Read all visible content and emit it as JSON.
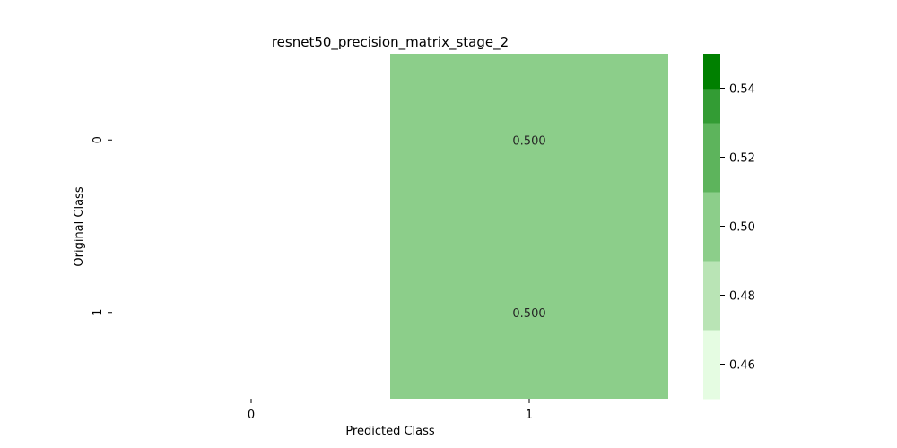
{
  "chart_data": {
    "type": "heatmap",
    "title": "resnet50_precision_matrix_stage_2",
    "xlabel": "Predicted Class",
    "ylabel": "Original Class",
    "x_categories": [
      "0",
      "1"
    ],
    "y_categories": [
      "0",
      "1"
    ],
    "values": [
      [
        null,
        0.5
      ],
      [
        null,
        0.5
      ]
    ],
    "cell_labels": [
      [
        "",
        "0.500"
      ],
      [
        "",
        "0.500"
      ]
    ],
    "colorbar": {
      "range": [
        0.45,
        0.55
      ],
      "ticks": [
        0.46,
        0.48,
        0.5,
        0.52,
        0.54
      ],
      "tick_labels": [
        "0.46",
        "0.48",
        "0.50",
        "0.52",
        "0.54"
      ],
      "bins": [
        {
          "from": 0.45,
          "to": 0.47,
          "color": "#e5fce2"
        },
        {
          "from": 0.47,
          "to": 0.49,
          "color": "#b9e4b5"
        },
        {
          "from": 0.49,
          "to": 0.51,
          "color": "#8cce8a"
        },
        {
          "from": 0.51,
          "to": 0.53,
          "color": "#5db45c"
        },
        {
          "from": 0.53,
          "to": 0.55,
          "color": "#339c34"
        }
      ],
      "top_color": "#008000",
      "placement": "right"
    }
  }
}
